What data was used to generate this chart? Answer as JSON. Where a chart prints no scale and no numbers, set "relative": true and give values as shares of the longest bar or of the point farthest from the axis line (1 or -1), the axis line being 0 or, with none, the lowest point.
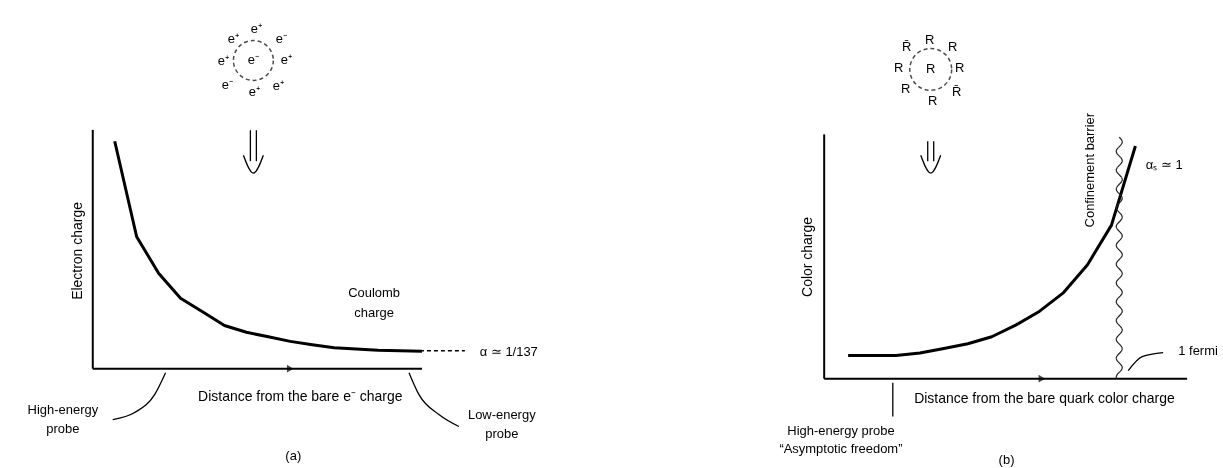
{
  "chart_data": [
    {
      "type": "line",
      "relative": true,
      "xlabel": "Distance from the bare e⁻ charge",
      "ylabel": "Electron charge",
      "categories": [
        null,
        null,
        null,
        null,
        null,
        null,
        null,
        null,
        null,
        null,
        null,
        null,
        null,
        null,
        null,
        null
      ],
      "series": [
        {
          "color": "#000000",
          "values": [
            null,
            1.0,
            0.58,
            0.42,
            0.31,
            0.25,
            0.19,
            0.16,
            0.14,
            0.12,
            0.105,
            0.092,
            0.086,
            0.081,
            0.079,
            0.077
          ]
        }
      ],
      "annotations": [
        "e⁺",
        "e⁺",
        "e⁻",
        "e⁺",
        "e⁻",
        "e⁺",
        "e⁻",
        "e⁺",
        "e⁺",
        "Coulomb",
        "charge",
        "α ≃ 1/137",
        "High-energy",
        "probe",
        "Low-energy",
        "probe",
        "(a)"
      ]
    },
    {
      "type": "line",
      "relative": true,
      "xlabel": "Distance from the bare quark color charge",
      "ylabel": "Color charge",
      "categories": [
        null,
        null,
        null,
        null,
        null,
        null,
        null,
        null,
        null,
        null,
        null,
        null,
        null,
        null
      ],
      "series": [
        {
          "color": "#000000",
          "values": [
            null,
            0.1,
            0.1,
            0.1,
            0.11,
            0.13,
            0.15,
            0.18,
            0.23,
            0.29,
            0.37,
            0.49,
            0.66,
            1.0
          ]
        }
      ],
      "annotations": [
        "R̄",
        "R",
        "R",
        "R",
        "R",
        "R",
        "R",
        "R",
        "R̄",
        "Confinement barrier",
        "αₛ ≃ 1",
        "1 fermi",
        "High-energy probe",
        "“Asymptotic freedom”",
        "(b)"
      ]
    }
  ]
}
